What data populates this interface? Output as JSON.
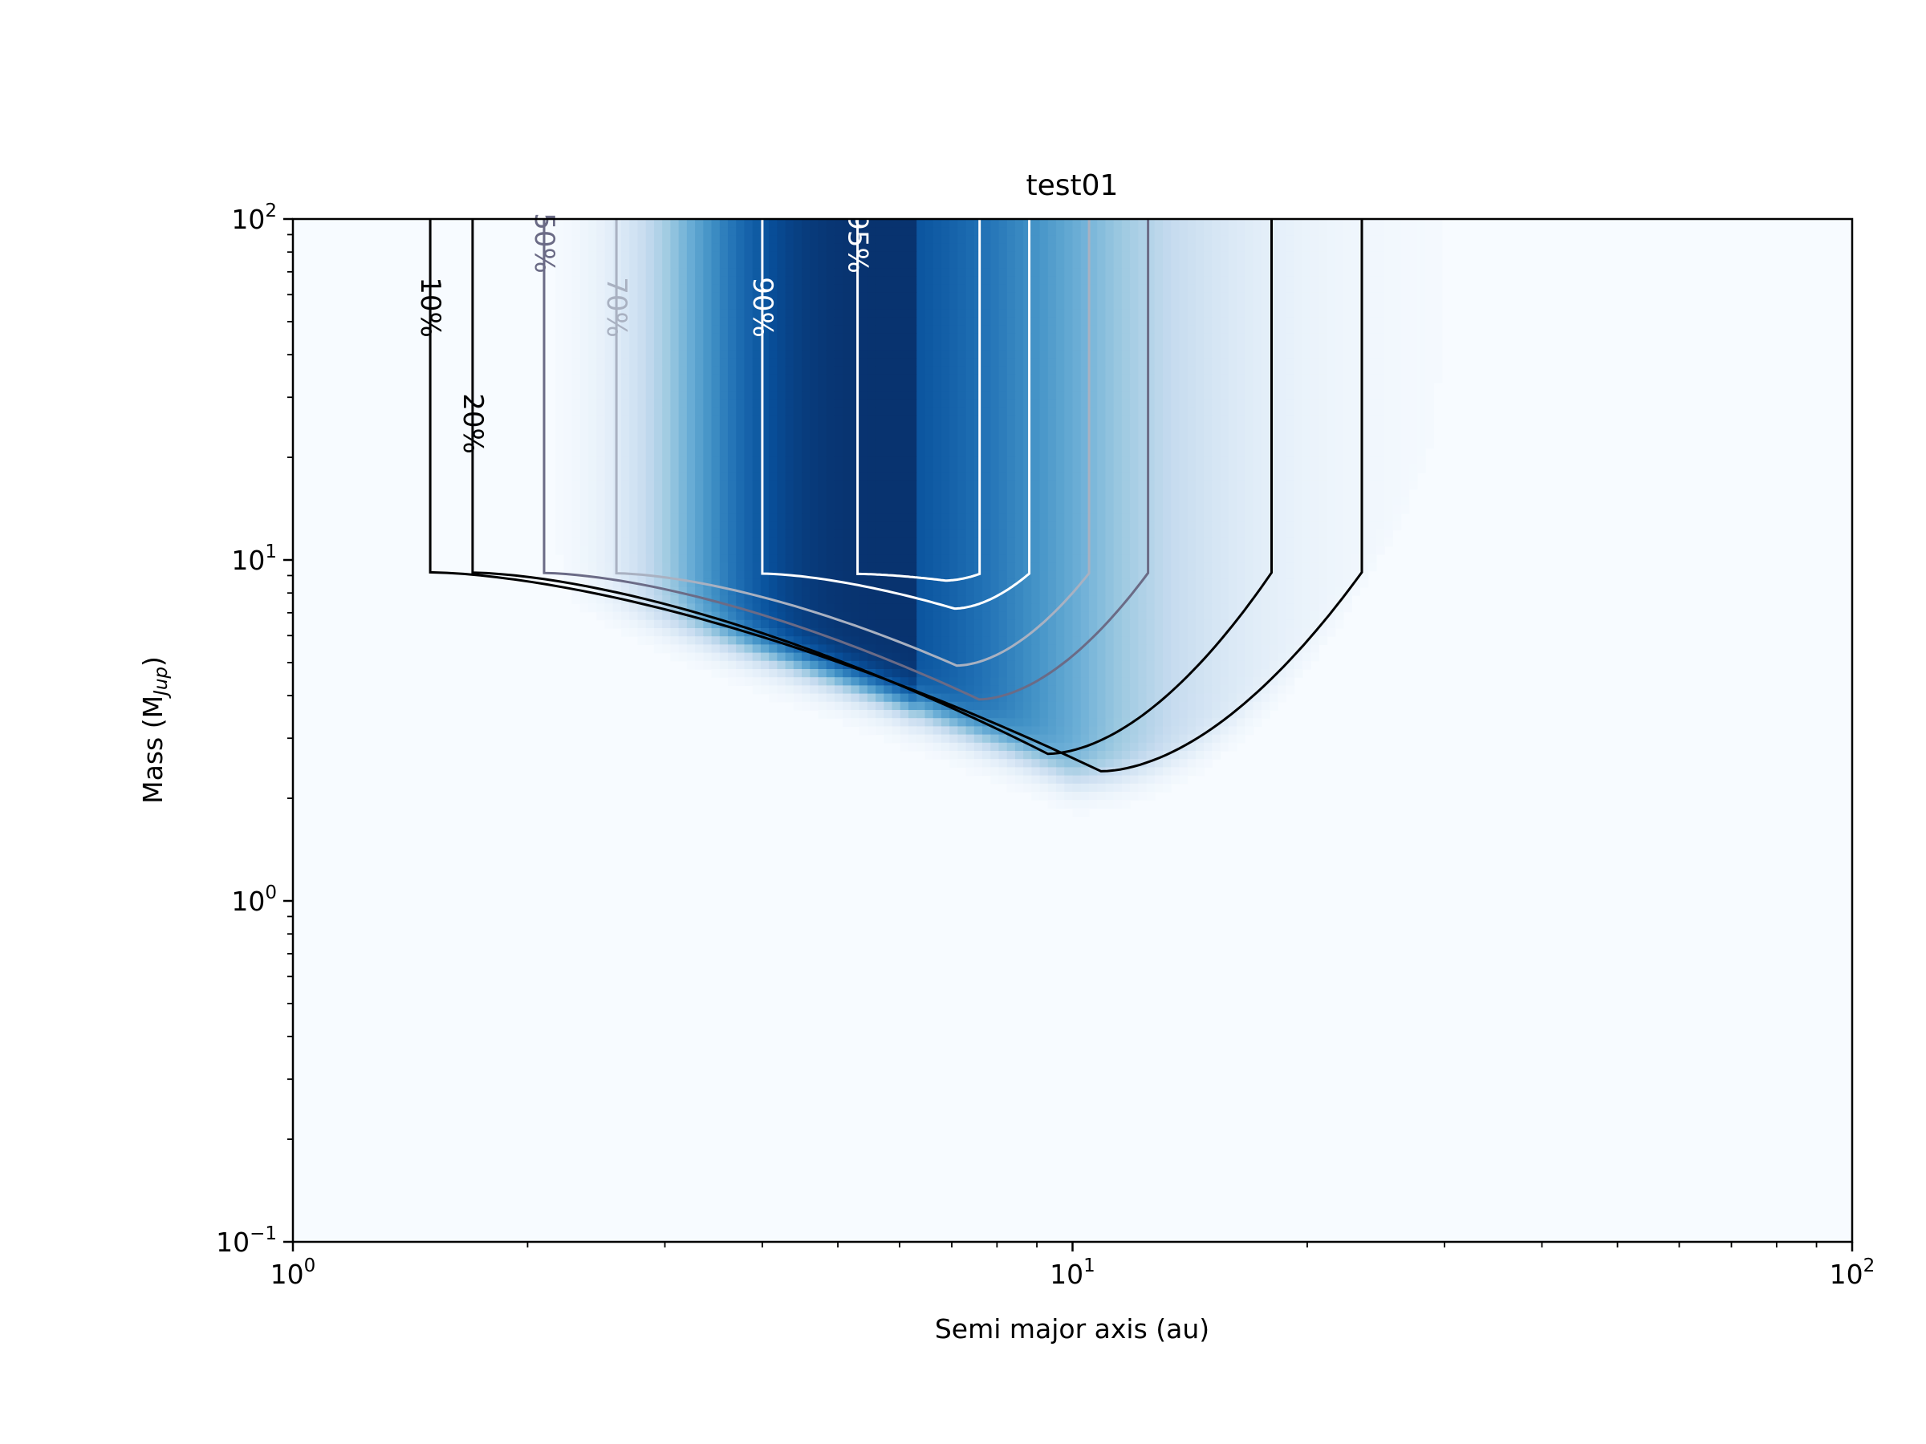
{
  "chart_data": {
    "type": "heatmap",
    "subtype": "detection probability map with labelled contours",
    "title": "test01",
    "xlabel": "Semi major axis (au)",
    "ylabel_main": "Mass (M",
    "ylabel_sub": "Jup",
    "ylabel_end": ")",
    "x_scale": "log",
    "y_scale": "log",
    "xlim": [
      1,
      100
    ],
    "ylim": [
      0.1,
      100
    ],
    "x_ticks": [
      {
        "value": 1,
        "base": "10",
        "exp": "0"
      },
      {
        "value": 10,
        "base": "10",
        "exp": "1"
      },
      {
        "value": 100,
        "base": "10",
        "exp": "2"
      }
    ],
    "y_ticks": [
      {
        "value": 0.1,
        "base": "10",
        "exp": "−1"
      },
      {
        "value": 1,
        "base": "10",
        "exp": "0"
      },
      {
        "value": 10,
        "base": "10",
        "exp": "1"
      },
      {
        "value": 100,
        "base": "10",
        "exp": "2"
      }
    ],
    "colormap": "Blues",
    "colormap_stops": [
      "#f7fbff",
      "#deebf7",
      "#c6dbef",
      "#9ecae1",
      "#6baed6",
      "#4292c6",
      "#2171b5",
      "#08519c",
      "#08306b"
    ],
    "grid": false,
    "contours": [
      {
        "level": 0.1,
        "label": "10%",
        "color": "#000000",
        "a_left": 1.5,
        "a_right": 23.5,
        "m_min": 2.4
      },
      {
        "level": 0.2,
        "label": "20%",
        "color": "#000000",
        "a_left": 1.7,
        "a_right": 18,
        "m_min": 2.7
      },
      {
        "level": 0.5,
        "label": "50%",
        "color": "#6b6b86",
        "a_left": 2.1,
        "a_right": 12.5,
        "m_min": 3.9
      },
      {
        "level": 0.7,
        "label": "70%",
        "color": "#a9b1c1",
        "a_left": 2.6,
        "a_right": 10.5,
        "m_min": 4.9
      },
      {
        "level": 0.9,
        "label": "90%",
        "color": "#ffffff",
        "a_left": 4.0,
        "a_right": 8.8,
        "m_min": 7.2
      },
      {
        "level": 0.95,
        "label": "95%",
        "color": "#ffffff",
        "a_left": 5.3,
        "a_right": 7.6,
        "m_min": 8.7
      }
    ]
  }
}
